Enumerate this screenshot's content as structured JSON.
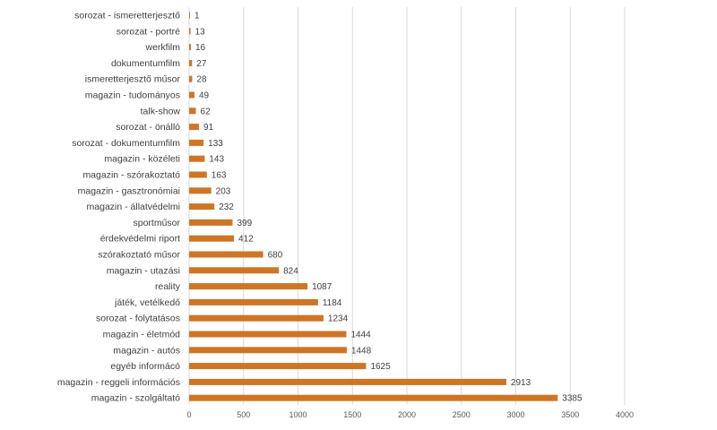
{
  "chart_data": {
    "type": "bar",
    "orientation": "horizontal",
    "title": "",
    "xlabel": "",
    "ylabel": "",
    "categories": [
      "sorozat - ismeretterjesztő",
      "sorozat - portré",
      "werkfilm",
      "dokumentumfilm",
      "ismeretterjesztő műsor",
      "magazin - tudományos",
      "talk-show",
      "sorozat - önálló",
      "sorozat - dokumentumfilm",
      "magazin - közéleti",
      "magazin - szórakoztató",
      "magazin - gasztronómiai",
      "magazin - állatvédelmi",
      "sportműsor",
      "érdekvédelmi riport",
      "szórakoztató műsor",
      "magazin - utazási",
      "reality",
      "játék, vetélkedő",
      "sorozat - folytatásos",
      "magazin - életmód",
      "magazin - autós",
      "egyéb informácó",
      "magazin - reggeli információs",
      "magazin - szolgáltató"
    ],
    "values": [
      1,
      13,
      16,
      27,
      28,
      49,
      62,
      91,
      133,
      143,
      163,
      203,
      232,
      399,
      412,
      680,
      824,
      1087,
      1184,
      1234,
      1444,
      1448,
      1625,
      2913,
      3385
    ],
    "xlim": [
      0,
      4000
    ],
    "xticks": [
      0,
      500,
      1000,
      1500,
      2000,
      2500,
      3000,
      3500,
      4000
    ],
    "data_labels": true,
    "grid": "vertical",
    "legend": "none",
    "bar_color": "#d07524"
  }
}
